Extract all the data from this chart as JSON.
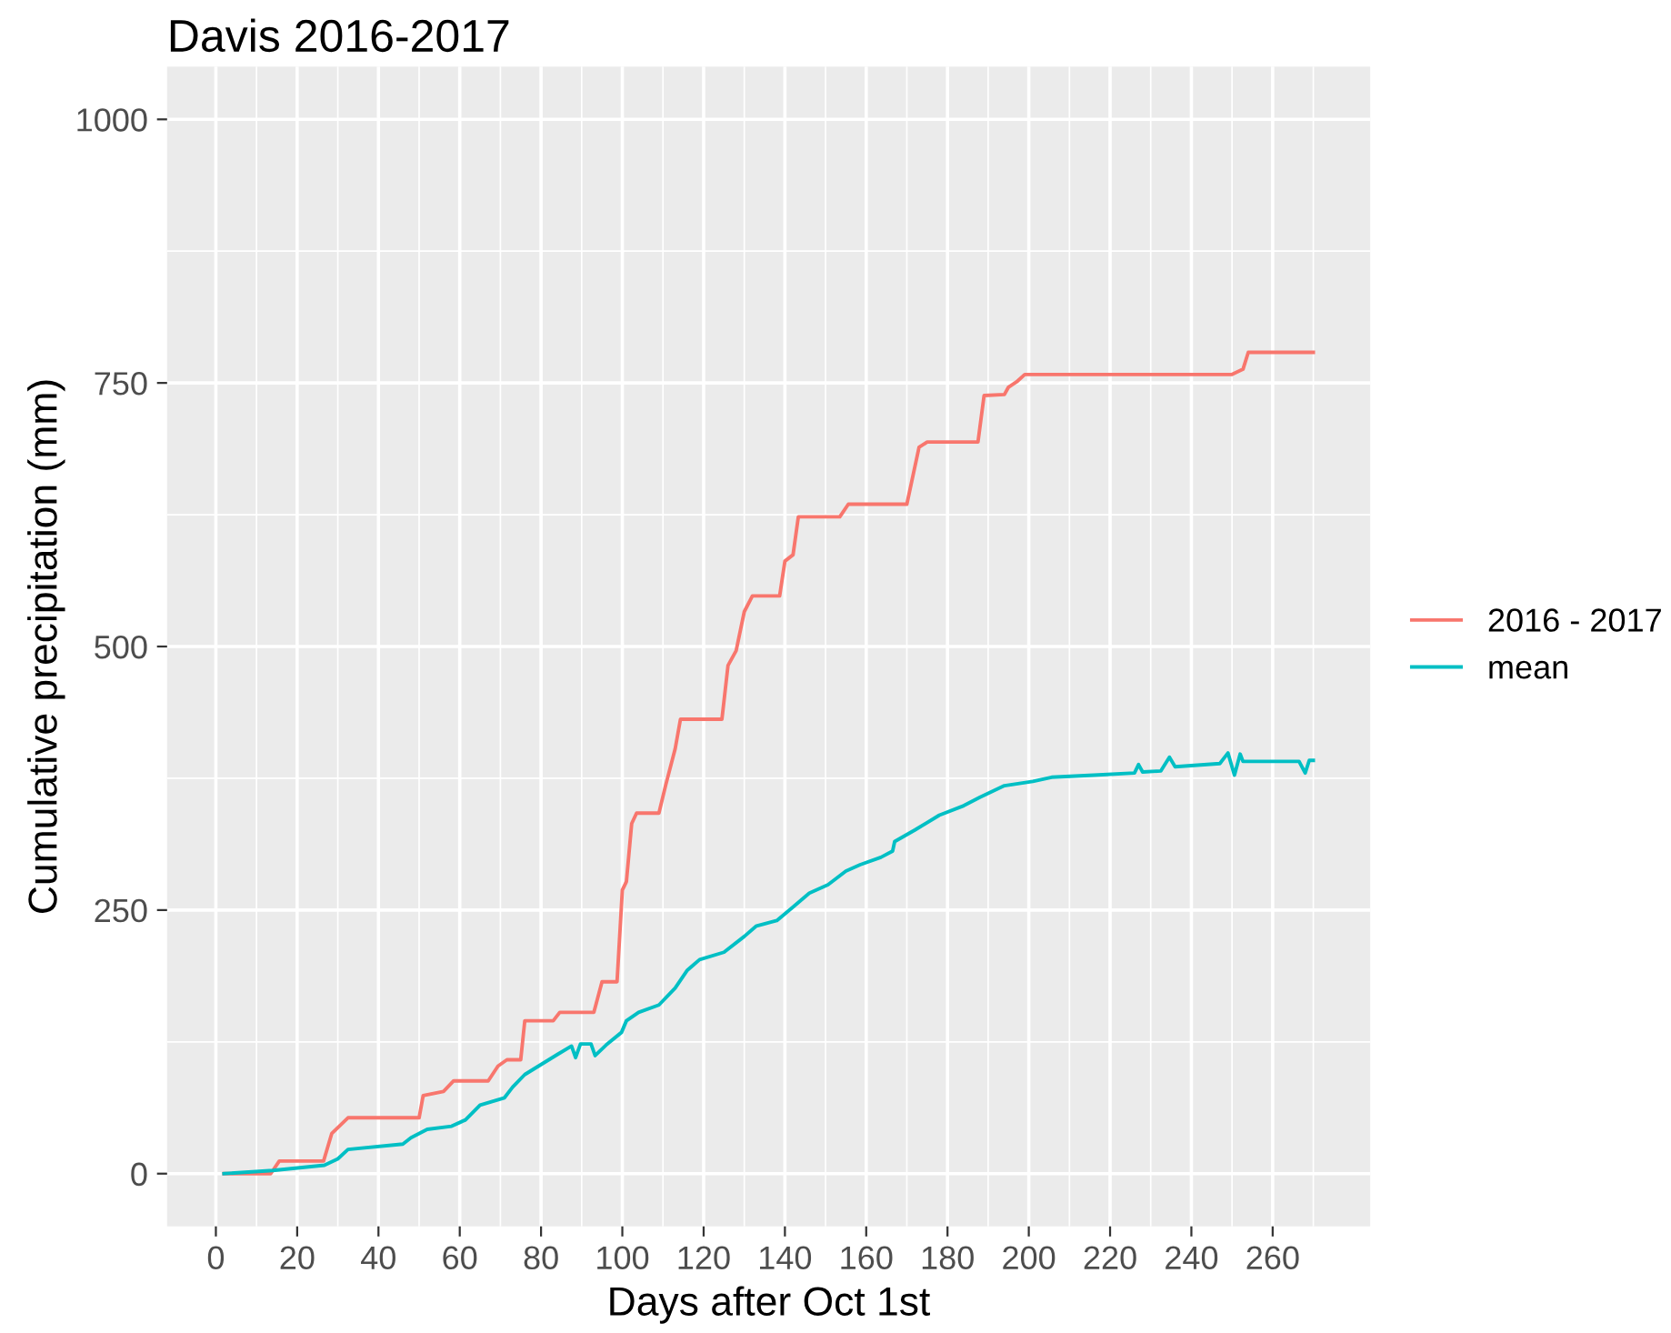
{
  "chart_data": {
    "type": "line",
    "title": "Davis 2016-2017",
    "xlabel": "Days after Oct 1st",
    "ylabel": "Cumulative precipitation (mm)",
    "xlim": [
      -12,
      284
    ],
    "ylim": [
      -50,
      1050
    ],
    "xticks": [
      0,
      20,
      40,
      60,
      80,
      100,
      120,
      140,
      160,
      180,
      200,
      220,
      240,
      260
    ],
    "yticks": [
      0,
      250,
      500,
      750,
      1000
    ],
    "grid": true,
    "legend": "right",
    "line_style": "solid",
    "marker": "none",
    "series": [
      {
        "name": "2016 - 2017",
        "color": "#f8766d",
        "x": [
          2,
          13.5,
          15.6,
          26.5,
          28.5,
          32.5,
          50,
          51,
          56,
          58.5,
          67,
          69.4,
          71.6,
          75,
          76,
          83,
          84.6,
          93,
          95,
          98.7,
          100,
          101,
          102.3,
          103.5,
          109,
          110.7,
          113,
          114.3,
          124.5,
          126,
          128,
          130,
          132,
          138.7,
          140,
          142,
          143.3,
          153.5,
          155.6,
          170,
          173,
          175,
          187.5,
          189,
          194,
          195,
          197,
          199,
          250,
          252.7,
          254,
          270
        ],
        "values": [
          0,
          0,
          12,
          12,
          38,
          53,
          53,
          74,
          78,
          88,
          88,
          102,
          108,
          108,
          145,
          145,
          153,
          153,
          182,
          182,
          269,
          277,
          332,
          342,
          342,
          369,
          403,
          431,
          431,
          482,
          496,
          533,
          548,
          548,
          581,
          587,
          623,
          623,
          635,
          635,
          689,
          694,
          694,
          738,
          739,
          746,
          751,
          758,
          758,
          763,
          779,
          779
        ]
      },
      {
        "name": "mean",
        "color": "#00bfc4",
        "x": [
          2,
          14,
          26.7,
          30,
          32.5,
          46,
          48,
          52,
          58,
          61.4,
          65,
          71,
          73,
          76,
          84,
          87.5,
          88.5,
          89.7,
          92.3,
          93.3,
          96,
          99.8,
          101,
          104,
          109,
          113,
          116,
          119,
          125,
          130,
          133,
          138,
          142,
          146,
          150.6,
          155,
          158.5,
          163.6,
          166.5,
          167,
          172,
          178,
          184,
          188,
          194,
          201,
          205.6,
          216,
          226,
          227,
          228,
          232.5,
          234.6,
          236,
          247,
          249,
          250.6,
          252,
          252.7,
          266.5,
          268,
          269,
          270
        ],
        "values": [
          0,
          3,
          8,
          14,
          23,
          28,
          34,
          42,
          45,
          51,
          65,
          72,
          82,
          94,
          113,
          121,
          110,
          123,
          123,
          112,
          122,
          134,
          145,
          153,
          160,
          176,
          193,
          203,
          210,
          225,
          235,
          240,
          253,
          266,
          274,
          287,
          293,
          300,
          306,
          315,
          326,
          340,
          349,
          357,
          368,
          372,
          376,
          378,
          380,
          388,
          381,
          382,
          395,
          386,
          389,
          399,
          378,
          398,
          391,
          391,
          380,
          392,
          392
        ]
      }
    ]
  }
}
